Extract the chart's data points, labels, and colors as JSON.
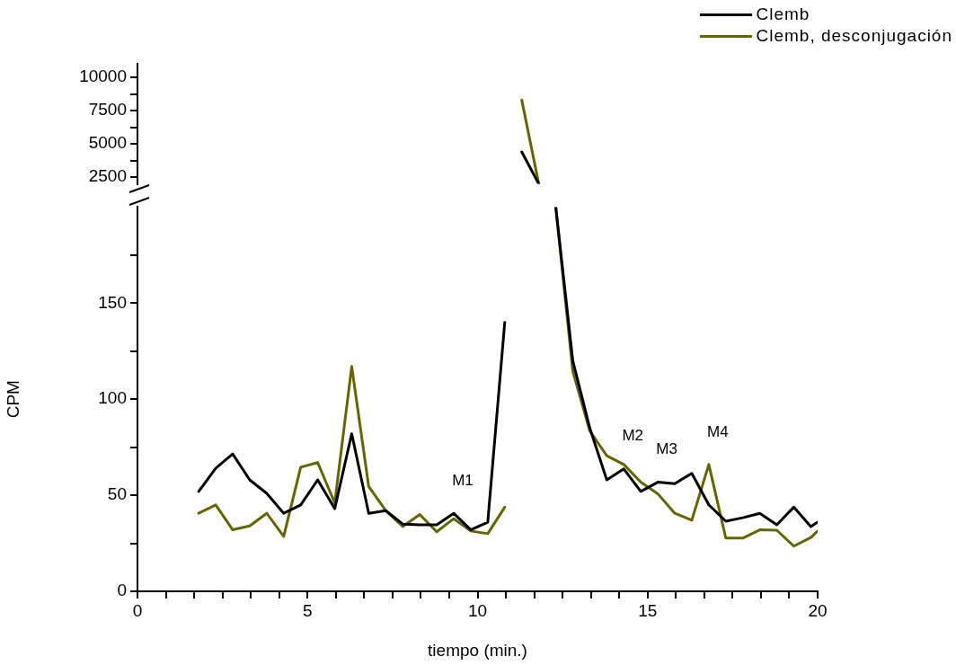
{
  "chart_data": [
    {
      "type": "line",
      "tick_labels": "y",
      "x": [
        11.3,
        11.8
      ],
      "series": [
        {
          "color": "#000000",
          "values": [
            4400,
            2000
          ]
        },
        {
          "color": "#666600",
          "values": [
            8300,
            2000
          ]
        }
      ],
      "xlim": [
        0,
        20
      ],
      "ylim": [
        2000,
        11000
      ],
      "yticks": [
        2500,
        {
          "value": 3750,
          "label": null
        },
        5000,
        {
          "value": 6250,
          "label": null
        },
        7500,
        {
          "value": 8750,
          "label": null
        },
        10000
      ],
      "grid": false,
      "line_style": "solid",
      "marker": "none"
    },
    {
      "type": "line",
      "legend": "top right",
      "xlabel": "tiempo (min.)",
      "ylabel": "CPM",
      "x": [
        1.8,
        2.3,
        2.8,
        3.3,
        3.8,
        4.3,
        4.8,
        5.3,
        5.8,
        6.3,
        6.8,
        7.3,
        7.8,
        8.3,
        8.8,
        9.3,
        9.8,
        10.3,
        10.8,
        11.3,
        11.8,
        12.3,
        12.8,
        13.3,
        13.8,
        14.3,
        14.8,
        15.3,
        15.8,
        16.3,
        16.8,
        17.3,
        17.8,
        18.3,
        18.8,
        19.3,
        19.8,
        20
      ],
      "series": [
        {
          "name": "Clemb",
          "color": "#000000",
          "values": [
            52,
            64,
            71.5,
            58,
            51,
            40.6,
            45,
            58,
            43,
            82,
            40.6,
            42,
            35,
            34.6,
            34.6,
            40.6,
            32,
            36,
            140,
            null,
            null,
            200,
            120,
            85,
            58,
            63.7,
            52,
            56.8,
            56,
            61.4,
            45,
            36.5,
            38.3,
            40.6,
            34.6,
            43.8,
            33.7,
            36
          ]
        },
        {
          "name": "Clemb, desconjugación",
          "color": "#666600",
          "values": [
            40.6,
            45,
            32,
            34,
            40.6,
            28.6,
            64.6,
            67,
            46,
            117,
            54.5,
            42,
            33.7,
            40,
            31,
            37.8,
            31.4,
            30,
            43.8,
            null,
            null,
            200,
            114.5,
            83.5,
            70.6,
            66,
            56.8,
            50.8,
            40.6,
            37,
            66,
            27.7,
            27.7,
            32,
            31.8,
            23.5,
            28,
            31.4
          ]
        }
      ],
      "xlim": [
        0,
        20
      ],
      "ylim": [
        0,
        200
      ],
      "xticks": [
        0,
        {
          "value": 0.8333,
          "label": null
        },
        {
          "value": 1.6667,
          "label": null
        },
        {
          "value": 2.5,
          "label": null
        },
        {
          "value": 3.3333,
          "label": null
        },
        {
          "value": 4.1667,
          "label": null
        },
        5,
        {
          "value": 5.8333,
          "label": null
        },
        {
          "value": 6.6667,
          "label": null
        },
        {
          "value": 7.5,
          "label": null
        },
        {
          "value": 8.3333,
          "label": null
        },
        {
          "value": 9.1667,
          "label": null
        },
        10,
        {
          "value": 10.8333,
          "label": null
        },
        {
          "value": 11.6667,
          "label": null
        },
        {
          "value": 12.5,
          "label": null
        },
        {
          "value": 13.3333,
          "label": null
        },
        {
          "value": 14.1667,
          "label": null
        },
        15,
        {
          "value": 15.8333,
          "label": null
        },
        {
          "value": 16.6667,
          "label": null
        },
        {
          "value": 17.5,
          "label": null
        },
        {
          "value": 18.3333,
          "label": null
        },
        {
          "value": 19.1667,
          "label": null
        },
        20
      ],
      "yticks": [
        0,
        {
          "value": 25,
          "label": null
        },
        50,
        {
          "value": 75,
          "label": null
        },
        100,
        {
          "value": 125,
          "label": null
        },
        150,
        {
          "value": 175,
          "label": null
        }
      ],
      "annotations": [
        {
          "text": "M1",
          "x": 9.3,
          "y": 40.6
        },
        {
          "text": "M2",
          "x": 14.3,
          "y": 63.7
        },
        {
          "text": "M3",
          "x": 15.3,
          "y": 56.8
        },
        {
          "text": "M4",
          "x": 16.8,
          "y": 66
        }
      ],
      "grid": false,
      "line_style": "solid",
      "marker": "none"
    }
  ]
}
